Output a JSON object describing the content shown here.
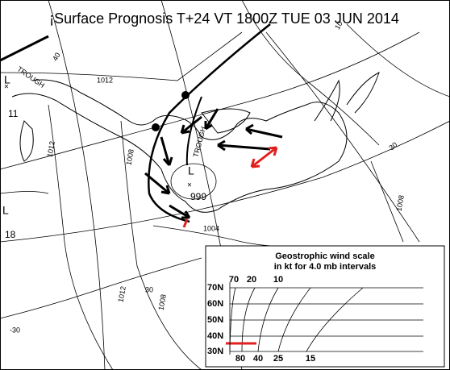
{
  "header": {
    "title": "¡Surface Prognosis T+24 VT 1800Z TUE 03 JUN 2014"
  },
  "map_labels": [
    {
      "text": "TROUGH"
    },
    {
      "text": "1012"
    },
    {
      "text": "L"
    },
    {
      "text": "11"
    },
    {
      "text": "1012"
    },
    {
      "text": "1008"
    },
    {
      "text": "L"
    },
    {
      "text": "999"
    },
    {
      "text": "TROUGH"
    },
    {
      "text": "1004"
    },
    {
      "text": "L"
    },
    {
      "text": "18"
    },
    {
      "text": "1008"
    },
    {
      "text": "30"
    },
    {
      "text": "1012"
    },
    {
      "text": "1008"
    },
    {
      "text": "30"
    },
    {
      "text": "-30"
    },
    {
      "text": "40"
    },
    {
      "text": "10"
    }
  ],
  "wind_scale": {
    "title": "Geostrophic wind scale",
    "subtitle": "in kt for 4.0 mb intervals",
    "top_speeds": [
      "70",
      "20",
      "10"
    ],
    "latitudes": [
      "70N",
      "60N",
      "50N",
      "40N",
      "30N"
    ],
    "bottom_speeds": [
      "80",
      "40",
      "25",
      "15"
    ]
  }
}
